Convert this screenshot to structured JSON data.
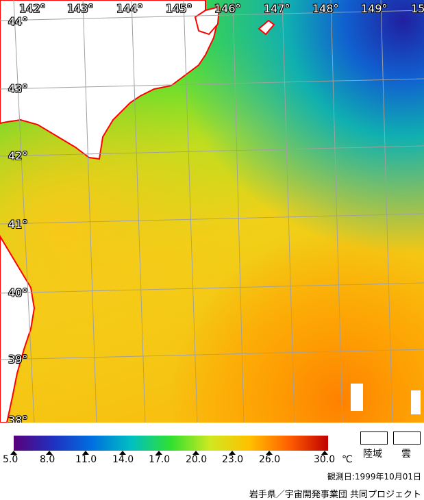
{
  "map": {
    "longitude_labels": [
      "142°",
      "143°",
      "144°",
      "145°",
      "146°",
      "147°",
      "148°",
      "149°",
      "15"
    ],
    "latitude_labels": [
      "44°",
      "43°",
      "42°",
      "41°",
      "40°",
      "39°",
      "38°"
    ],
    "colors": {
      "land": "#ffffff",
      "coastline": "#ff0000",
      "graticule": "#a0a0a0"
    }
  },
  "legend": {
    "scale_labels": [
      "5.0",
      "8.0",
      "11.0",
      "14.0",
      "17.0",
      "20.0",
      "23.0",
      "26.0",
      "30.0"
    ],
    "unit": "℃",
    "land_label": "陸域",
    "cloud_label": "雲",
    "scale_colors": [
      "#5a007a",
      "#2030c0",
      "#0070e0",
      "#00c0c0",
      "#30e030",
      "#d0e820",
      "#ffc000",
      "#ff6000",
      "#c00000"
    ]
  },
  "observation_date": "観測日:1999年10月01日",
  "credit": "岩手県／宇宙開発事業団 共同プロジェクト"
}
